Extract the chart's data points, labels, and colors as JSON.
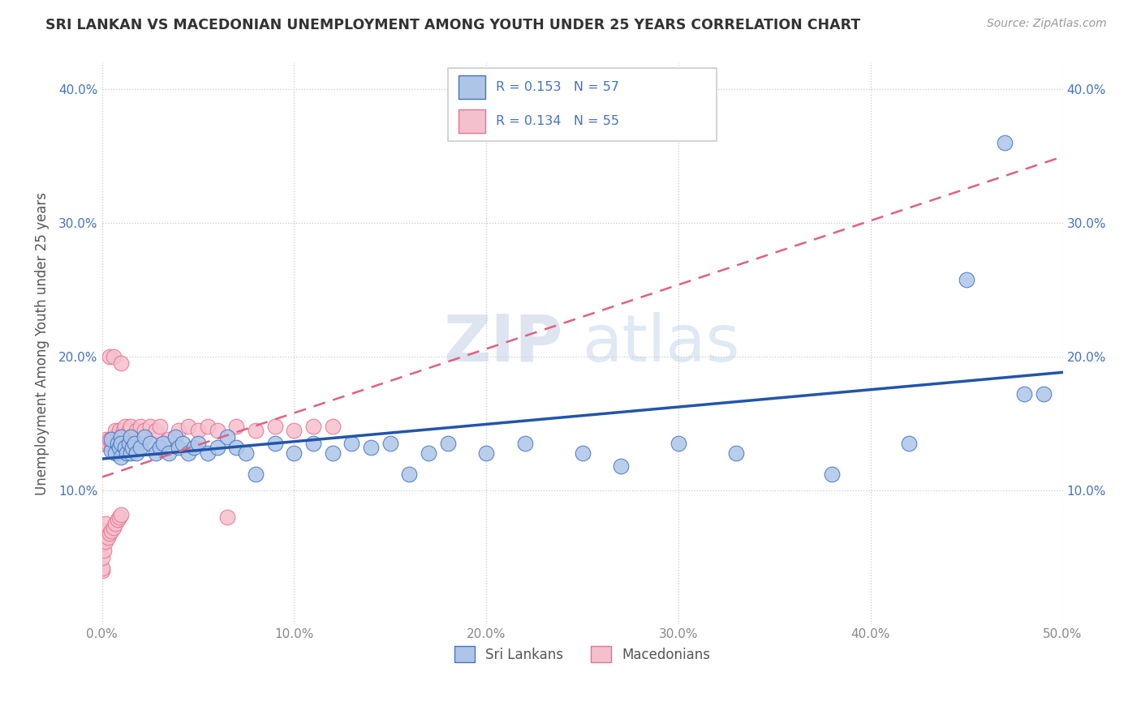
{
  "title": "SRI LANKAN VS MACEDONIAN UNEMPLOYMENT AMONG YOUTH UNDER 25 YEARS CORRELATION CHART",
  "source": "Source: ZipAtlas.com",
  "ylabel": "Unemployment Among Youth under 25 years",
  "xlim": [
    0.0,
    0.5
  ],
  "ylim": [
    0.0,
    0.42
  ],
  "xticks": [
    0.0,
    0.1,
    0.2,
    0.3,
    0.4,
    0.5
  ],
  "yticks": [
    0.1,
    0.2,
    0.3,
    0.4
  ],
  "sri_lankans_color": "#adc6e8",
  "macedonians_color": "#f5c0ce",
  "sri_lankans_edge": "#4472c4",
  "macedonians_edge": "#e87090",
  "trend_sri_color": "#2255aa",
  "trend_mac_color": "#e06080",
  "R_sri": 0.153,
  "N_sri": 57,
  "R_mac": 0.134,
  "N_mac": 55,
  "watermark_zip": "ZIP",
  "watermark_atlas": "atlas",
  "background_color": "#ffffff",
  "grid_color": "#c8c8d8",
  "legend_label_sri": "Sri Lankans",
  "legend_label_mac": "Macedonians",
  "sri_x": [
    0.005,
    0.005,
    0.007,
    0.008,
    0.009,
    0.01,
    0.01,
    0.01,
    0.012,
    0.013,
    0.014,
    0.015,
    0.015,
    0.016,
    0.017,
    0.018,
    0.02,
    0.022,
    0.025,
    0.028,
    0.03,
    0.032,
    0.035,
    0.038,
    0.04,
    0.042,
    0.045,
    0.048,
    0.05,
    0.055,
    0.06,
    0.065,
    0.07,
    0.075,
    0.08,
    0.09,
    0.1,
    0.11,
    0.12,
    0.13,
    0.14,
    0.15,
    0.16,
    0.17,
    0.18,
    0.2,
    0.22,
    0.25,
    0.27,
    0.3,
    0.33,
    0.38,
    0.42,
    0.45,
    0.47,
    0.48,
    0.49
  ],
  "sri_y": [
    0.13,
    0.138,
    0.128,
    0.135,
    0.132,
    0.125,
    0.14,
    0.135,
    0.132,
    0.128,
    0.135,
    0.128,
    0.14,
    0.132,
    0.135,
    0.128,
    0.132,
    0.14,
    0.135,
    0.128,
    0.132,
    0.135,
    0.128,
    0.14,
    0.132,
    0.135,
    0.128,
    0.132,
    0.135,
    0.128,
    0.132,
    0.14,
    0.132,
    0.128,
    0.112,
    0.135,
    0.128,
    0.135,
    0.128,
    0.135,
    0.132,
    0.135,
    0.112,
    0.128,
    0.135,
    0.128,
    0.135,
    0.128,
    0.118,
    0.135,
    0.128,
    0.112,
    0.135,
    0.258,
    0.36,
    0.172,
    0.172
  ],
  "mac_x": [
    0.0,
    0.0,
    0.0,
    0.0,
    0.0,
    0.0,
    0.001,
    0.001,
    0.001,
    0.002,
    0.002,
    0.002,
    0.003,
    0.003,
    0.004,
    0.004,
    0.004,
    0.005,
    0.005,
    0.006,
    0.006,
    0.006,
    0.007,
    0.007,
    0.008,
    0.008,
    0.009,
    0.009,
    0.01,
    0.01,
    0.011,
    0.012,
    0.013,
    0.014,
    0.015,
    0.016,
    0.018,
    0.02,
    0.022,
    0.025,
    0.028,
    0.03,
    0.035,
    0.04,
    0.045,
    0.05,
    0.055,
    0.06,
    0.065,
    0.07,
    0.08,
    0.09,
    0.1,
    0.11,
    0.12
  ],
  "mac_y": [
    0.04,
    0.042,
    0.05,
    0.06,
    0.065,
    0.135,
    0.055,
    0.07,
    0.135,
    0.062,
    0.075,
    0.138,
    0.065,
    0.135,
    0.068,
    0.138,
    0.2,
    0.07,
    0.135,
    0.072,
    0.14,
    0.2,
    0.075,
    0.145,
    0.078,
    0.14,
    0.08,
    0.145,
    0.082,
    0.195,
    0.145,
    0.148,
    0.135,
    0.145,
    0.148,
    0.138,
    0.145,
    0.148,
    0.145,
    0.148,
    0.145,
    0.148,
    0.138,
    0.145,
    0.148,
    0.145,
    0.148,
    0.145,
    0.08,
    0.148,
    0.145,
    0.148,
    0.145,
    0.148,
    0.148
  ]
}
